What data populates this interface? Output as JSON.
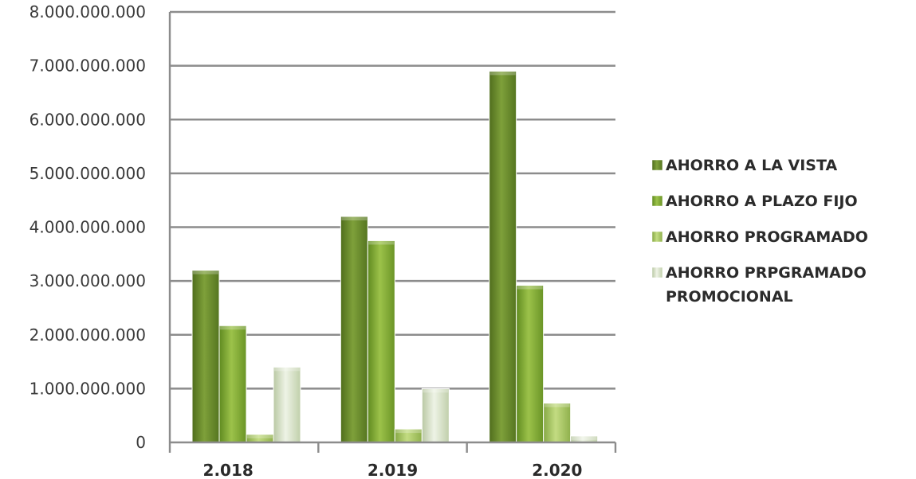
{
  "chart_data": {
    "type": "bar",
    "categories": [
      "2.018",
      "2.019",
      "2.020"
    ],
    "series": [
      {
        "name": "AHORRO A LA VISTA",
        "values": [
          3200000000,
          4200000000,
          6900000000
        ],
        "color": "#6a8f2c"
      },
      {
        "name": "AHORRO A PLAZO FIJO",
        "values": [
          2170000000,
          3750000000,
          2920000000
        ],
        "color": "#84ab35"
      },
      {
        "name": "AHORRO PROGRAMADO",
        "values": [
          150000000,
          250000000,
          730000000
        ],
        "color": "#a7c75e"
      },
      {
        "name": "AHORRO PRPGRAMADO PROMOCIONAL",
        "values": [
          1400000000,
          1000000000,
          120000000
        ],
        "color": "#d7e1c3"
      }
    ],
    "legend_lines": [
      [
        "AHORRO A LA VISTA"
      ],
      [
        "AHORRO A PLAZO FIJO"
      ],
      [
        "AHORRO PROGRAMADO"
      ],
      [
        "AHORRO PRPGRAMADO",
        "PROMOCIONAL"
      ]
    ],
    "y_ticks": [
      "0",
      "1.000.000.000",
      "2.000.000.000",
      "3.000.000.000",
      "4.000.000.000",
      "5.000.000.000",
      "6.000.000.000",
      "7.000.000.000",
      "8.000.000.000"
    ],
    "ylim": [
      0,
      8000000000
    ],
    "grid": true,
    "legend_position": "right",
    "title": "",
    "xlabel": "",
    "ylabel": ""
  }
}
